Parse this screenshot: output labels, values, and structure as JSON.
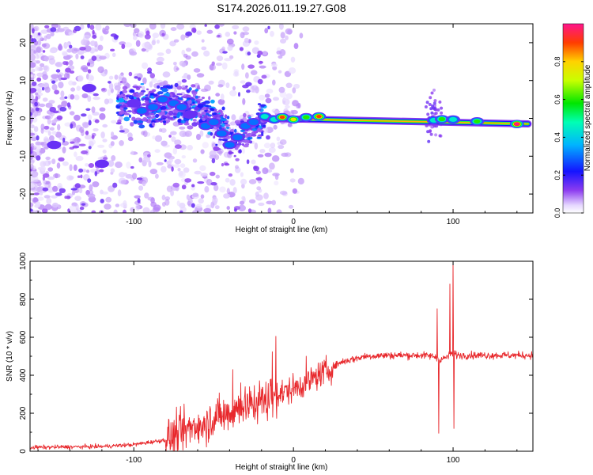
{
  "title": "S174.2026.011.19.27.G08",
  "chart_data": [
    {
      "type": "heatmap",
      "id": "spectrogram",
      "xlabel": "Height of straight line (km)",
      "ylabel": "Frequency (Hz)",
      "xlim": [
        -165,
        150
      ],
      "ylim": [
        -25,
        25
      ],
      "xticks": [
        -100,
        0,
        100
      ],
      "yticks": [
        -20,
        -10,
        0,
        10,
        20
      ],
      "colorbar": {
        "label": "Normalized spectral amplitude",
        "range": [
          0,
          1
        ],
        "ticks": [
          0.0,
          0.2,
          0.4,
          0.6,
          0.8
        ],
        "tick_labels": [
          "0.0",
          "0.2",
          "0.4",
          "0.6",
          "0.8"
        ]
      },
      "ridge": {
        "description_points_km": [
          -20,
          150
        ],
        "frequency_hz": [
          0,
          -1.5
        ]
      },
      "blobs": [
        {
          "x": -100,
          "y": 4,
          "v": 0.25
        },
        {
          "x": -95,
          "y": 2,
          "v": 0.3
        },
        {
          "x": -88,
          "y": 3,
          "v": 0.35
        },
        {
          "x": -82,
          "y": 5,
          "v": 0.3
        },
        {
          "x": -75,
          "y": 4,
          "v": 0.4
        },
        {
          "x": -70,
          "y": 3,
          "v": 0.3
        },
        {
          "x": -65,
          "y": 1,
          "v": 0.25
        },
        {
          "x": -55,
          "y": -2,
          "v": 0.35
        },
        {
          "x": -50,
          "y": -1,
          "v": 0.3
        },
        {
          "x": -45,
          "y": -4,
          "v": 0.3
        },
        {
          "x": -40,
          "y": -7,
          "v": 0.3
        },
        {
          "x": -35,
          "y": -5,
          "v": 0.35
        },
        {
          "x": -30,
          "y": -2,
          "v": 0.3
        },
        {
          "x": -25,
          "y": -1,
          "v": 0.35
        },
        {
          "x": -18,
          "y": 0.5,
          "v": 0.45
        },
        {
          "x": -12,
          "y": -0.3,
          "v": 0.55
        },
        {
          "x": -7,
          "y": 0.3,
          "v": 0.95
        },
        {
          "x": 0,
          "y": -0.3,
          "v": 0.85
        },
        {
          "x": 8,
          "y": 0.3,
          "v": 0.6
        },
        {
          "x": 16,
          "y": 0.5,
          "v": 0.9
        },
        {
          "x": 88,
          "y": -0.5,
          "v": 0.45
        },
        {
          "x": 93,
          "y": -0.2,
          "v": 0.7
        },
        {
          "x": 100,
          "y": -0.3,
          "v": 0.55
        },
        {
          "x": 115,
          "y": -0.8,
          "v": 0.7
        },
        {
          "x": 140,
          "y": -1.5,
          "v": 1.0
        },
        {
          "x": -150,
          "y": -7,
          "v": 0.2
        },
        {
          "x": -120,
          "y": -12,
          "v": 0.25
        },
        {
          "x": -128,
          "y": 8,
          "v": 0.2
        }
      ]
    },
    {
      "type": "line",
      "id": "snr",
      "xlabel": "Height of straight line (km)",
      "ylabel": "SNR (10 * v/v)",
      "xlim": [
        -165,
        150
      ],
      "ylim": [
        0,
        1000
      ],
      "xticks": [
        -100,
        0,
        100
      ],
      "yticks": [
        0,
        200,
        400,
        600,
        800,
        1000
      ],
      "color": "#e8282c",
      "envelope_x": [
        -165,
        -120,
        -100,
        -80,
        -60,
        -45,
        -30,
        -15,
        0,
        10,
        20,
        30,
        45,
        60,
        80,
        88,
        92,
        97,
        100,
        103,
        110,
        150
      ],
      "envelope_y": [
        20,
        25,
        35,
        60,
        140,
        190,
        240,
        280,
        330,
        370,
        420,
        470,
        500,
        505,
        505,
        500,
        480,
        500,
        520,
        505,
        505,
        505
      ],
      "spikes": [
        {
          "x": -38,
          "y": 430
        },
        {
          "x": -33,
          "y": 360
        },
        {
          "x": -22,
          "y": 310
        },
        {
          "x": -11,
          "y": 605
        },
        {
          "x": 8,
          "y": 500
        },
        {
          "x": 91,
          "y": 95
        },
        {
          "x": 90,
          "y": 750
        },
        {
          "x": 98,
          "y": 880
        },
        {
          "x": 100,
          "y": 1000
        },
        {
          "x": 100.5,
          "y": 120
        }
      ]
    }
  ]
}
